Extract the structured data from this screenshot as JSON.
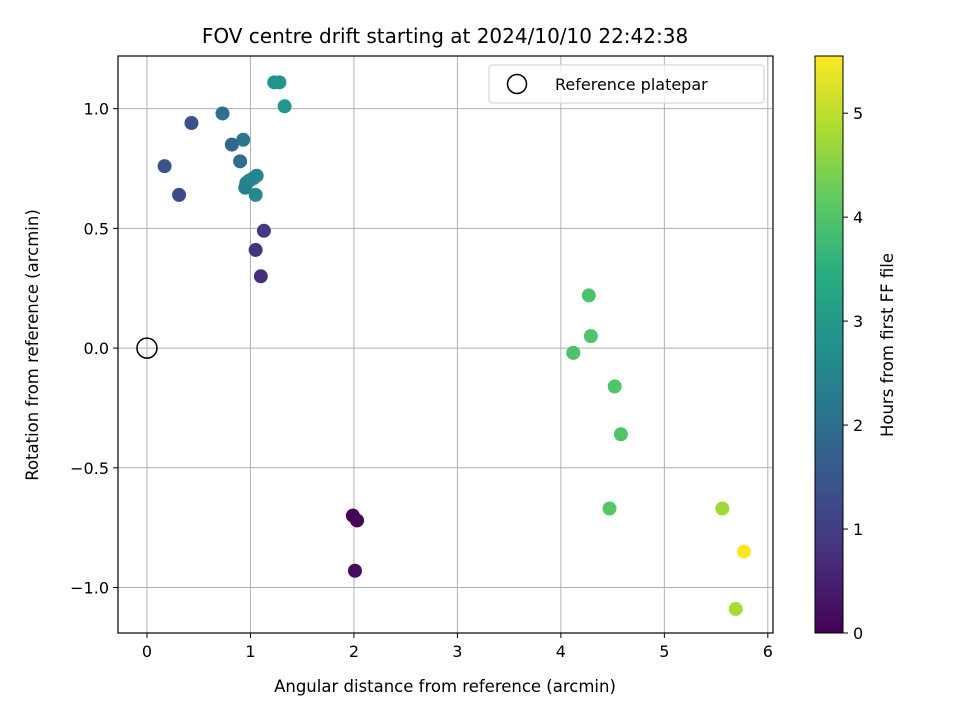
{
  "chart_data": {
    "type": "scatter",
    "title": "FOV centre drift starting at 2024/10/10 22:42:38",
    "xlabel": "Angular distance from reference (arcmin)",
    "ylabel": "Rotation from reference (arcmin)",
    "xlim": [
      -0.28,
      6.05
    ],
    "ylim": [
      -1.19,
      1.22
    ],
    "xticks": [
      0,
      1,
      2,
      3,
      4,
      5,
      6
    ],
    "yticks": [
      -1.0,
      -0.5,
      0.0,
      0.5,
      1.0
    ],
    "xtick_labels": [
      "0",
      "1",
      "2",
      "3",
      "4",
      "5",
      "6"
    ],
    "ytick_labels": [
      "−1.0",
      "−0.5",
      "0.0",
      "0.5",
      "1.0"
    ],
    "grid": true,
    "legend": {
      "placement": "top-right",
      "entries": [
        "Reference platepar"
      ]
    },
    "reference_point": {
      "x": 0.0,
      "y": 0.0,
      "label": "Reference platepar"
    },
    "colorbar": {
      "label": "Hours from first FF file",
      "colormap": "viridis",
      "range": [
        0,
        5.55
      ],
      "ticks": [
        0,
        1,
        2,
        3,
        4,
        5
      ],
      "tick_labels": [
        "0",
        "1",
        "2",
        "3",
        "4",
        "5"
      ]
    },
    "points": [
      {
        "x": 1.99,
        "y": -0.7,
        "c": 0.0
      },
      {
        "x": 2.03,
        "y": -0.72,
        "c": 0.08
      },
      {
        "x": 2.01,
        "y": -0.93,
        "c": 0.16
      },
      {
        "x": 1.1,
        "y": 0.3,
        "c": 0.75
      },
      {
        "x": 1.05,
        "y": 0.41,
        "c": 0.85
      },
      {
        "x": 1.13,
        "y": 0.49,
        "c": 0.95
      },
      {
        "x": 0.31,
        "y": 0.64,
        "c": 1.25
      },
      {
        "x": 0.43,
        "y": 0.94,
        "c": 1.35
      },
      {
        "x": 0.17,
        "y": 0.76,
        "c": 1.45
      },
      {
        "x": 0.82,
        "y": 0.85,
        "c": 1.85
      },
      {
        "x": 0.9,
        "y": 0.78,
        "c": 1.95
      },
      {
        "x": 0.73,
        "y": 0.98,
        "c": 2.05
      },
      {
        "x": 0.93,
        "y": 0.87,
        "c": 2.15
      },
      {
        "x": 0.95,
        "y": 0.67,
        "c": 2.35
      },
      {
        "x": 0.96,
        "y": 0.69,
        "c": 2.4
      },
      {
        "x": 0.99,
        "y": 0.7,
        "c": 2.45
      },
      {
        "x": 1.03,
        "y": 0.71,
        "c": 2.5
      },
      {
        "x": 1.06,
        "y": 0.72,
        "c": 2.55
      },
      {
        "x": 1.05,
        "y": 0.64,
        "c": 2.6
      },
      {
        "x": 1.23,
        "y": 1.11,
        "c": 2.8
      },
      {
        "x": 1.28,
        "y": 1.11,
        "c": 2.85
      },
      {
        "x": 1.33,
        "y": 1.01,
        "c": 2.9
      },
      {
        "x": 4.12,
        "y": -0.02,
        "c": 3.95
      },
      {
        "x": 4.27,
        "y": 0.22,
        "c": 3.95
      },
      {
        "x": 4.29,
        "y": 0.05,
        "c": 4.0
      },
      {
        "x": 4.52,
        "y": -0.16,
        "c": 4.0
      },
      {
        "x": 4.58,
        "y": -0.36,
        "c": 4.0
      },
      {
        "x": 4.47,
        "y": -0.67,
        "c": 4.05
      },
      {
        "x": 5.56,
        "y": -0.67,
        "c": 4.75
      },
      {
        "x": 5.69,
        "y": -1.09,
        "c": 4.8
      },
      {
        "x": 5.77,
        "y": -0.85,
        "c": 5.55
      }
    ]
  }
}
